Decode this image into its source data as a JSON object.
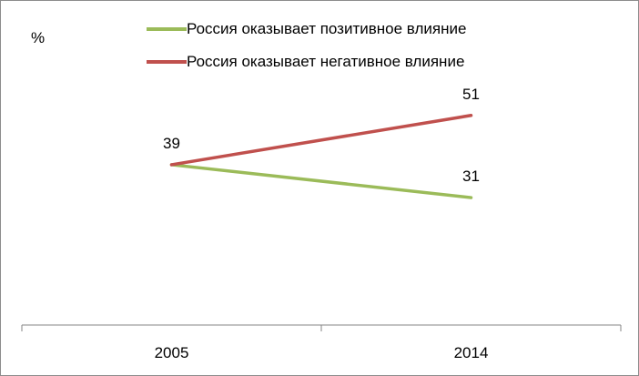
{
  "chart_data": {
    "type": "line",
    "title": "",
    "xlabel": "",
    "ylabel": "%",
    "categories": [
      "2005",
      "2014"
    ],
    "ylim": [
      0,
      70
    ],
    "grid": false,
    "legend_position": "top",
    "series": [
      {
        "name": "Россия оказывает позитивное влияние",
        "values": [
          39,
          31
        ],
        "color": "#9bbb59",
        "labels": [
          "",
          "31"
        ]
      },
      {
        "name": "Россия оказывает негативное влияние",
        "values": [
          39,
          51
        ],
        "color": "#c0504d",
        "labels": [
          "39",
          "51"
        ]
      }
    ]
  }
}
